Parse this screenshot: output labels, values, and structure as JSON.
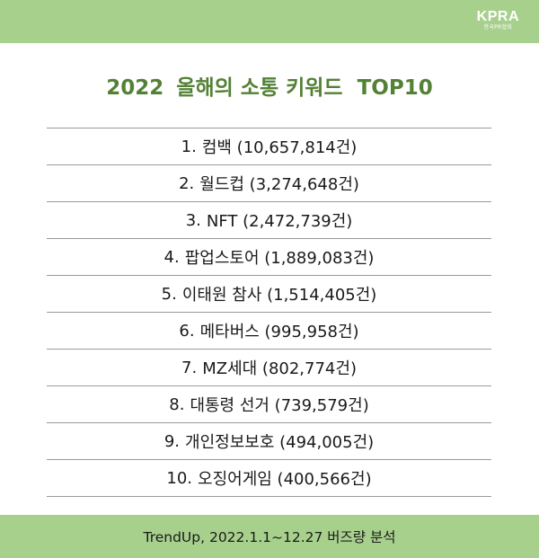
{
  "logo": {
    "mark": "KPRA",
    "sub": "한국PR협회"
  },
  "title": {
    "year": "2022",
    "text": "올해의 소통 키워드",
    "brand": "TOP10"
  },
  "keywords": [
    {
      "rank": "1.",
      "text": "컴백 (10,657,814건)"
    },
    {
      "rank": "2.",
      "text": "월드컵 (3,274,648건)"
    },
    {
      "rank": "3.",
      "text": "NFT (2,472,739건)"
    },
    {
      "rank": "4.",
      "text": "팝업스토어 (1,889,083건)"
    },
    {
      "rank": "5.",
      "text": "이태원 참사 (1,514,405건)"
    },
    {
      "rank": "6.",
      "text": "메타버스 (995,958건)"
    },
    {
      "rank": "7.",
      "text": "MZ세대 (802,774건)"
    },
    {
      "rank": "8.",
      "text": "대통령 선거 (739,579건)"
    },
    {
      "rank": "9.",
      "text": "개인정보보호 (494,005건)"
    },
    {
      "rank": "10.",
      "text": "오징어게임 (400,566건)"
    }
  ],
  "footer": {
    "text": "TrendUp, 2022.1.1~12.27 버즈량 분석"
  }
}
